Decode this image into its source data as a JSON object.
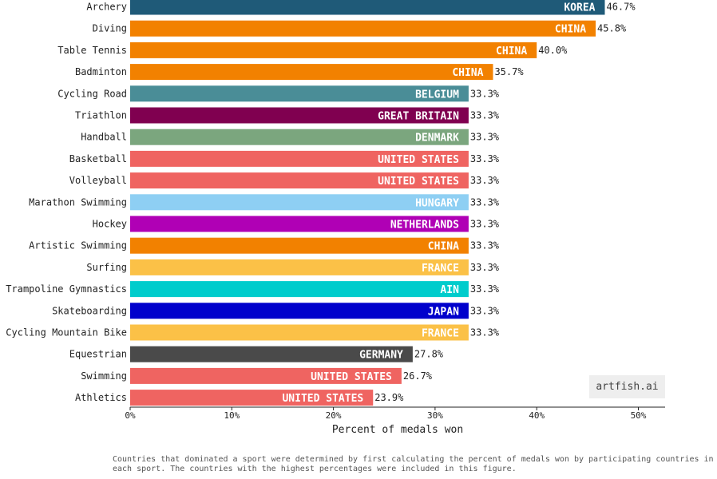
{
  "chart_data": {
    "type": "bar",
    "orientation": "horizontal",
    "xlabel": "Percent of medals won",
    "xlim": [
      0,
      52.5
    ],
    "xticks": [
      "0%",
      "10%",
      "20%",
      "30%",
      "40%",
      "50%"
    ],
    "grid": false,
    "bars": [
      {
        "sport": "Archery",
        "country": "KOREA",
        "value": 46.7,
        "label": "46.7%",
        "color": "#1f5a78"
      },
      {
        "sport": "Diving",
        "country": "CHINA",
        "value": 45.8,
        "label": "45.8%",
        "color": "#f28100"
      },
      {
        "sport": "Table Tennis",
        "country": "CHINA",
        "value": 40.0,
        "label": "40.0%",
        "color": "#f28100"
      },
      {
        "sport": "Badminton",
        "country": "CHINA",
        "value": 35.7,
        "label": "35.7%",
        "color": "#f28100"
      },
      {
        "sport": "Cycling Road",
        "country": "BELGIUM",
        "value": 33.3,
        "label": "33.3%",
        "color": "#4a8d97"
      },
      {
        "sport": "Triathlon",
        "country": "GREAT BRITAIN",
        "value": 33.3,
        "label": "33.3%",
        "color": "#800050"
      },
      {
        "sport": "Handball",
        "country": "DENMARK",
        "value": 33.3,
        "label": "33.3%",
        "color": "#7ba67e"
      },
      {
        "sport": "Basketball",
        "country": "UNITED STATES",
        "value": 33.3,
        "label": "33.3%",
        "color": "#ef6461"
      },
      {
        "sport": "Volleyball",
        "country": "UNITED STATES",
        "value": 33.3,
        "label": "33.3%",
        "color": "#ef6461"
      },
      {
        "sport": "Marathon Swimming",
        "country": "HUNGARY",
        "value": 33.3,
        "label": "33.3%",
        "color": "#8ecff3"
      },
      {
        "sport": "Hockey",
        "country": "NETHERLANDS",
        "value": 33.3,
        "label": "33.3%",
        "color": "#b000b5"
      },
      {
        "sport": "Artistic Swimming",
        "country": "CHINA",
        "value": 33.3,
        "label": "33.3%",
        "color": "#f28100"
      },
      {
        "sport": "Surfing",
        "country": "FRANCE",
        "value": 33.3,
        "label": "33.3%",
        "color": "#fbc147"
      },
      {
        "sport": "Trampoline Gymnastics",
        "country": "AIN",
        "value": 33.3,
        "label": "33.3%",
        "color": "#00cccc"
      },
      {
        "sport": "Skateboarding",
        "country": "JAPAN",
        "value": 33.3,
        "label": "33.3%",
        "color": "#0000cc"
      },
      {
        "sport": "Cycling Mountain Bike",
        "country": "FRANCE",
        "value": 33.3,
        "label": "33.3%",
        "color": "#fbc147"
      },
      {
        "sport": "Equestrian",
        "country": "GERMANY",
        "value": 27.8,
        "label": "27.8%",
        "color": "#4a4a4a"
      },
      {
        "sport": "Swimming",
        "country": "UNITED STATES",
        "value": 26.7,
        "label": "26.7%",
        "color": "#ef6461"
      },
      {
        "sport": "Athletics",
        "country": "UNITED STATES",
        "value": 23.9,
        "label": "23.9%",
        "color": "#ef6461"
      }
    ]
  },
  "watermark": "artfish.ai",
  "footnote": "Countries that dominated a sport were determined by first calculating the percent of medals won by participating countries in each sport. The countries with the highest percentages were included in this figure."
}
